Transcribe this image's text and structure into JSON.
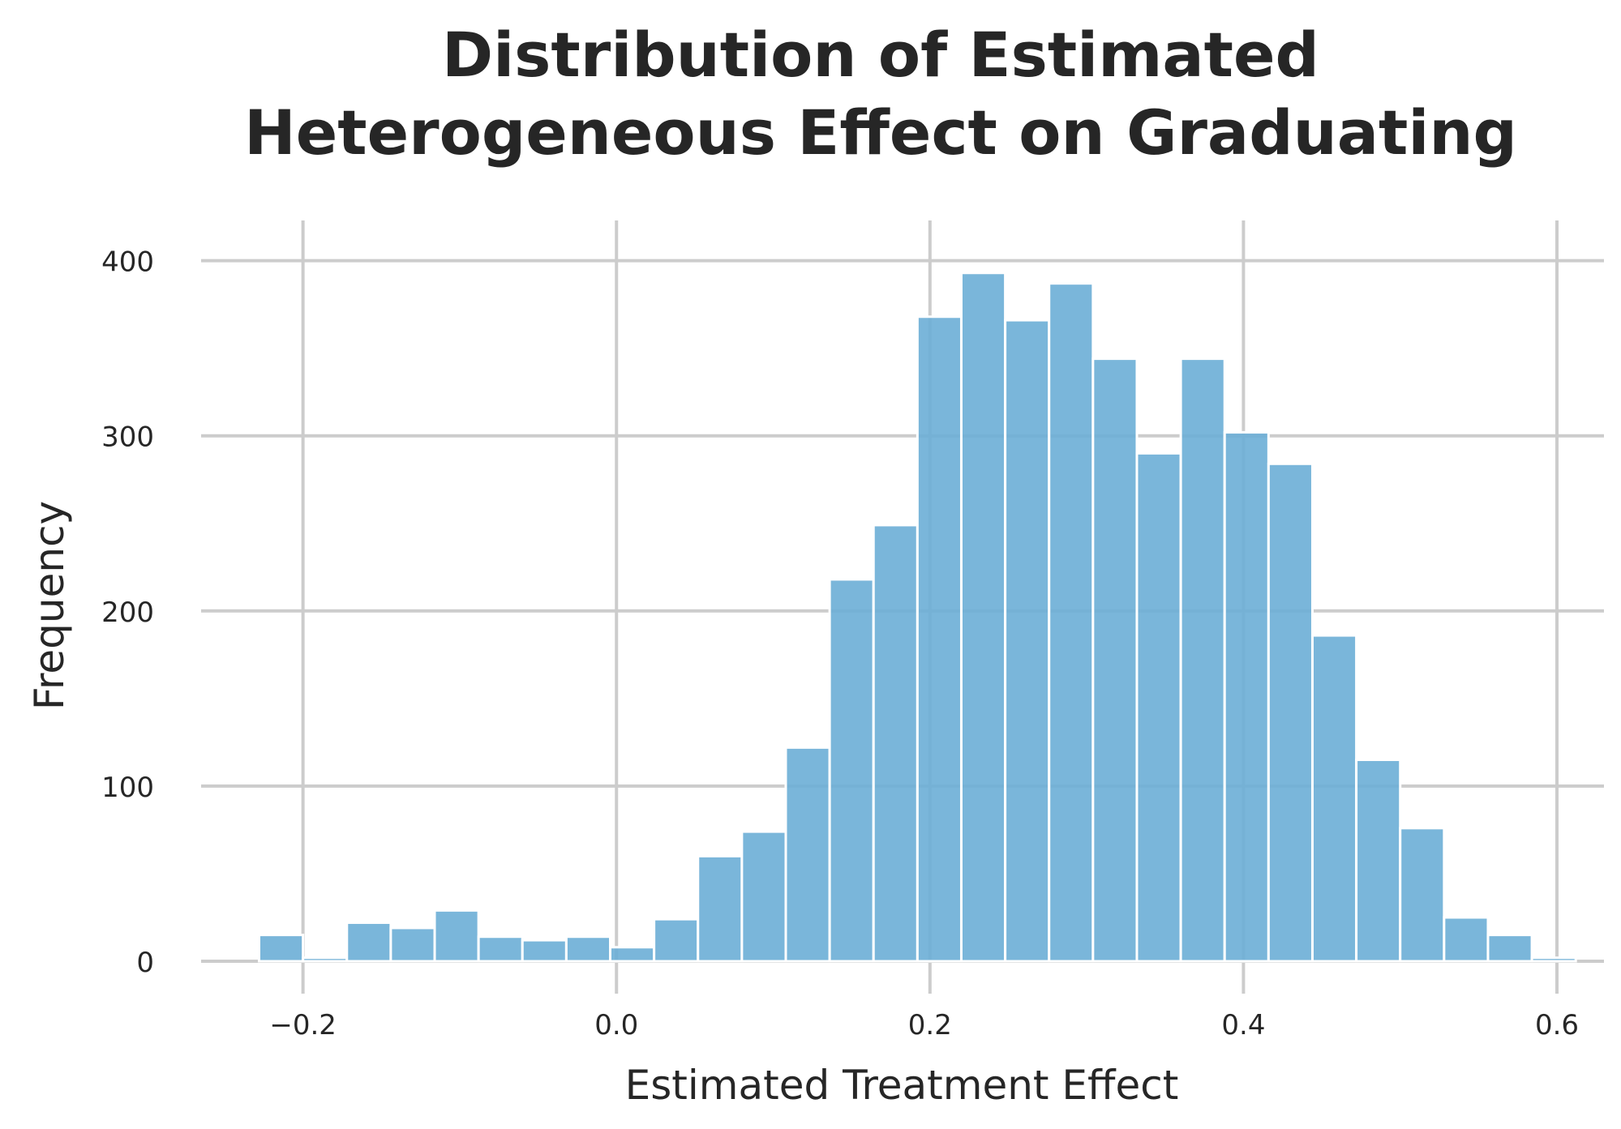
{
  "chart_data": {
    "type": "bar",
    "title_lines": [
      "Distribution of Estimated",
      "Heterogeneous Effect on Graduating"
    ],
    "xlabel": "Estimated Treatment Effect",
    "ylabel": "Frequency",
    "xlim": [
      -0.265,
      0.63
    ],
    "ylim": [
      0,
      410
    ],
    "xticks": [
      -0.2,
      0.0,
      0.2,
      0.4,
      0.6
    ],
    "xtick_labels": [
      "−0.2",
      "0.0",
      "0.2",
      "0.4",
      "0.6"
    ],
    "yticks": [
      0,
      100,
      200,
      300,
      400
    ],
    "ytick_labels": [
      "0",
      "100",
      "200",
      "300",
      "400"
    ],
    "grid": true,
    "bar_color": "#6baed6",
    "bin_width": 0.028,
    "bin_starts": [
      -0.228,
      -0.2,
      -0.172,
      -0.144,
      -0.116,
      -0.088,
      -0.06,
      -0.032,
      -0.004,
      0.024,
      0.052,
      0.08,
      0.108,
      0.136,
      0.164,
      0.192,
      0.22,
      0.248,
      0.276,
      0.304,
      0.332,
      0.36,
      0.388,
      0.416,
      0.444,
      0.472,
      0.5,
      0.528,
      0.556,
      0.584
    ],
    "values": [
      15,
      2,
      22,
      19,
      29,
      14,
      12,
      14,
      8,
      24,
      60,
      74,
      122,
      218,
      249,
      368,
      393,
      366,
      387,
      344,
      290,
      344,
      302,
      284,
      186,
      115,
      76,
      25,
      15,
      2
    ]
  }
}
